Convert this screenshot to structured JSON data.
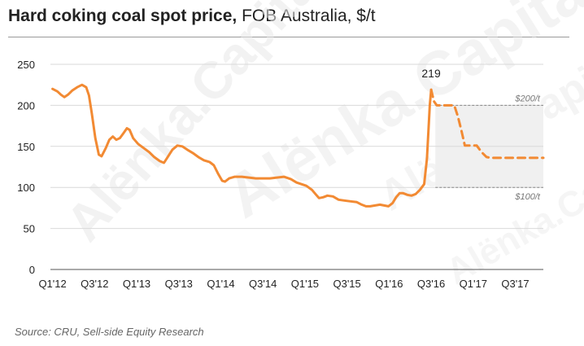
{
  "header": {
    "title_bold": "Hard coking coal spot price,",
    "title_rest": " FOB Australia, $/t"
  },
  "source": "Source: CRU, Sell-side Equity Research",
  "watermark": "Alёnka.Capital",
  "colors": {
    "line": "#f28a33",
    "grid": "#d9d9d9",
    "band": "#f0f0f0",
    "axis": "#555555"
  },
  "chart_data": {
    "type": "line",
    "title": "Hard coking coal spot price, FOB Australia, $/t",
    "ylim": [
      0,
      250
    ],
    "yticks": [
      0,
      50,
      100,
      150,
      200,
      250
    ],
    "xticks": [
      {
        "label": "Q1'12",
        "x": 0
      },
      {
        "label": "Q3'12",
        "x": 6
      },
      {
        "label": "Q1'13",
        "x": 12
      },
      {
        "label": "Q3'13",
        "x": 18
      },
      {
        "label": "Q1'14",
        "x": 24
      },
      {
        "label": "Q3'14",
        "x": 30
      },
      {
        "label": "Q1'15",
        "x": 36
      },
      {
        "label": "Q3'15",
        "x": 42
      },
      {
        "label": "Q1'16",
        "x": 48
      },
      {
        "label": "Q3'16",
        "x": 54
      },
      {
        "label": "Q1'17",
        "x": 60
      },
      {
        "label": "Q3'17",
        "x": 66
      }
    ],
    "xlim": [
      -0.3,
      70
    ],
    "grid": true,
    "series": [
      {
        "style": "solid",
        "points": [
          [
            0,
            220
          ],
          [
            0.7,
            217
          ],
          [
            1.2,
            213
          ],
          [
            1.7,
            210
          ],
          [
            2.2,
            213
          ],
          [
            2.8,
            218
          ],
          [
            3.5,
            222
          ],
          [
            4.2,
            225
          ],
          [
            4.8,
            222
          ],
          [
            5.2,
            212
          ],
          [
            5.6,
            190
          ],
          [
            6.1,
            160
          ],
          [
            6.6,
            140
          ],
          [
            7.0,
            138
          ],
          [
            7.6,
            148
          ],
          [
            8.1,
            158
          ],
          [
            8.6,
            162
          ],
          [
            9.1,
            158
          ],
          [
            9.6,
            160
          ],
          [
            10.1,
            166
          ],
          [
            10.6,
            172
          ],
          [
            11.0,
            170
          ],
          [
            11.5,
            160
          ],
          [
            12.2,
            153
          ],
          [
            13.0,
            148
          ],
          [
            13.8,
            143
          ],
          [
            14.5,
            137
          ],
          [
            15.3,
            132
          ],
          [
            15.9,
            130
          ],
          [
            16.5,
            138
          ],
          [
            17.1,
            146
          ],
          [
            17.8,
            151
          ],
          [
            18.5,
            150
          ],
          [
            19.2,
            146
          ],
          [
            20.0,
            142
          ],
          [
            20.8,
            137
          ],
          [
            21.6,
            133
          ],
          [
            22.4,
            131
          ],
          [
            23.0,
            127
          ],
          [
            23.6,
            117
          ],
          [
            24.2,
            108
          ],
          [
            24.6,
            107
          ],
          [
            25.2,
            111
          ],
          [
            26.0,
            113
          ],
          [
            27.0,
            113
          ],
          [
            28.0,
            112
          ],
          [
            29.0,
            111
          ],
          [
            30.0,
            111
          ],
          [
            31.0,
            111
          ],
          [
            32.0,
            112
          ],
          [
            33.0,
            113
          ],
          [
            34.0,
            110
          ],
          [
            34.8,
            106
          ],
          [
            35.5,
            104
          ],
          [
            36.2,
            102
          ],
          [
            37.0,
            97
          ],
          [
            37.6,
            91
          ],
          [
            38.0,
            87
          ],
          [
            38.6,
            88
          ],
          [
            39.2,
            90
          ],
          [
            40.0,
            89
          ],
          [
            40.8,
            85
          ],
          [
            41.6,
            84
          ],
          [
            42.5,
            83
          ],
          [
            43.4,
            82
          ],
          [
            44.1,
            79
          ],
          [
            44.7,
            77
          ],
          [
            45.3,
            77
          ],
          [
            46.0,
            78
          ],
          [
            46.7,
            79
          ],
          [
            47.3,
            78
          ],
          [
            47.9,
            77
          ],
          [
            48.5,
            81
          ],
          [
            49.0,
            88
          ],
          [
            49.5,
            93
          ],
          [
            50.0,
            93
          ],
          [
            50.6,
            91
          ],
          [
            51.2,
            90
          ],
          [
            51.8,
            92
          ],
          [
            52.4,
            97
          ],
          [
            53.0,
            104
          ],
          [
            53.4,
            135
          ],
          [
            53.8,
            200
          ],
          [
            54.0,
            219
          ]
        ]
      },
      {
        "style": "dashed",
        "points": [
          [
            54.0,
            219
          ],
          [
            54.4,
            205
          ],
          [
            54.8,
            200
          ],
          [
            55.5,
            200
          ],
          [
            57.3,
            200
          ],
          [
            57.8,
            187
          ],
          [
            58.3,
            170
          ],
          [
            58.8,
            151
          ],
          [
            59.5,
            151
          ],
          [
            60.5,
            151
          ],
          [
            61.2,
            143
          ],
          [
            61.9,
            137
          ],
          [
            62.5,
            136
          ],
          [
            64.0,
            136
          ],
          [
            67.0,
            136
          ],
          [
            70.0,
            136
          ]
        ]
      }
    ],
    "annotations": [
      {
        "text": "219",
        "x": 54.0,
        "y": 219
      },
      {
        "text": "$200/t",
        "y": 200
      },
      {
        "text": "$100/t",
        "y": 100
      }
    ],
    "shaded_band": {
      "x_from": 54.6,
      "x_to": 70,
      "y_from": 100,
      "y_to": 200
    }
  }
}
